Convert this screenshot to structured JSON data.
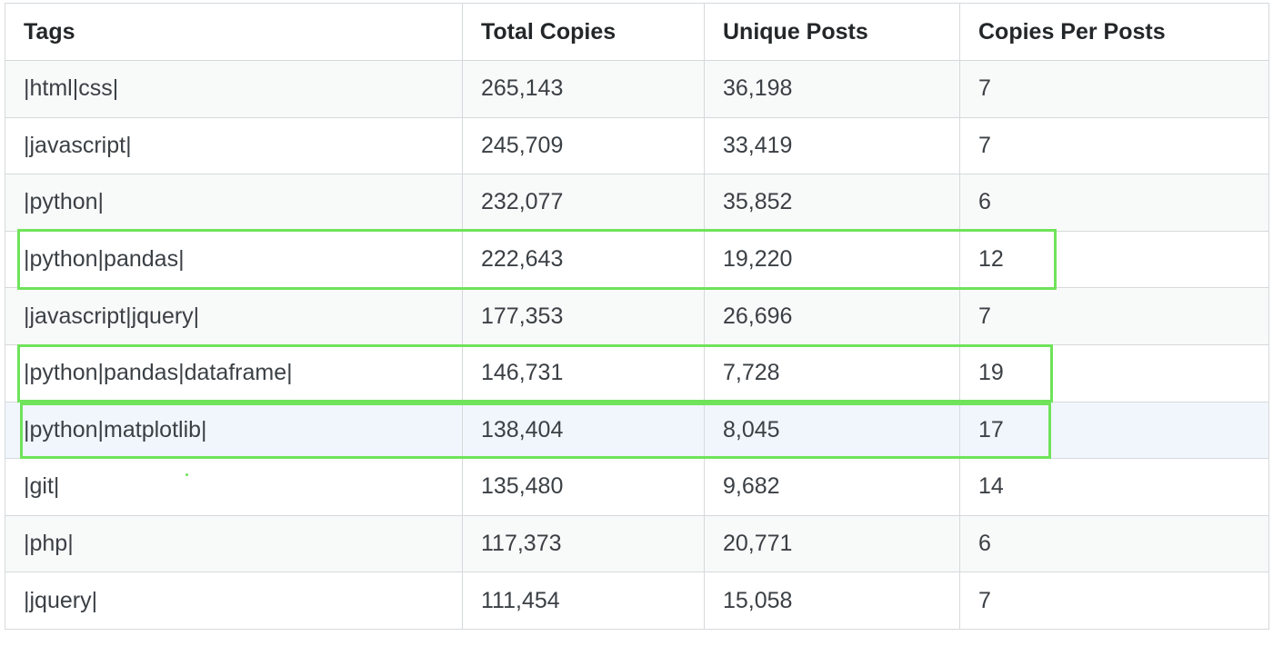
{
  "table": {
    "headers": [
      "Tags",
      "Total Copies",
      "Unique Posts",
      "Copies Per Posts"
    ],
    "rows": [
      [
        "|html|css|",
        "265,143",
        "36,198",
        "7"
      ],
      [
        "|javascript|",
        "245,709",
        "33,419",
        "7"
      ],
      [
        "|python|",
        "232,077",
        "35,852",
        "6"
      ],
      [
        "|python|pandas|",
        "222,643",
        "19,220",
        "12"
      ],
      [
        "|javascript|jquery|",
        "177,353",
        "26,696",
        "7"
      ],
      [
        "|python|pandas|dataframe|",
        "146,731",
        "7,728",
        "19"
      ],
      [
        "|python|matplotlib|",
        "138,404",
        "8,045",
        "17"
      ],
      [
        "|git|",
        "135,480",
        "9,682",
        "14"
      ],
      [
        "|php|",
        "117,373",
        "20,771",
        "6"
      ],
      [
        "|jquery|",
        "111,454",
        "15,058",
        "7"
      ]
    ],
    "hovered_row_index": 6
  },
  "highlights": {
    "color": "#6fe35a",
    "rows": [
      3,
      5,
      6
    ]
  },
  "colors": {
    "border": "#d6d9dc",
    "stripe": "#f8f9f9",
    "hover": "#f0f6fb",
    "header_text": "#242729",
    "cell_text": "#3b4045"
  }
}
